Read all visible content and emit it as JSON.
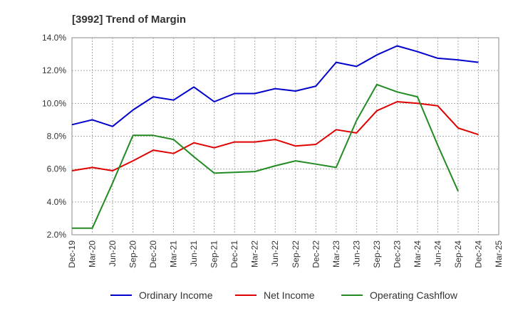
{
  "chart_data": {
    "type": "line",
    "title": "[3992]  Trend of Margin",
    "categories": [
      "Dec-19",
      "Mar-20",
      "Jun-20",
      "Sep-20",
      "Dec-20",
      "Mar-21",
      "Jun-21",
      "Sep-21",
      "Dec-21",
      "Mar-22",
      "Jun-22",
      "Sep-22",
      "Dec-22",
      "Mar-23",
      "Jun-23",
      "Sep-23",
      "Dec-23",
      "Mar-24",
      "Jun-24",
      "Sep-24",
      "Dec-24",
      "Mar-25"
    ],
    "y_ticks": [
      "14.0%",
      "12.0%",
      "10.0%",
      "8.0%",
      "6.0%",
      "4.0%",
      "2.0%"
    ],
    "ylim": [
      2.0,
      14.0
    ],
    "grid": true,
    "legend_position": "bottom",
    "series": [
      {
        "name": "Ordinary Income",
        "color": "#0000cc",
        "values": [
          8.7,
          9.0,
          8.6,
          9.6,
          10.4,
          10.2,
          11.0,
          10.1,
          10.6,
          10.6,
          10.9,
          10.75,
          11.05,
          12.5,
          12.25,
          12.95,
          13.5,
          13.15,
          12.75,
          12.65,
          12.5,
          null
        ]
      },
      {
        "name": "Net Income",
        "color": "#e00000",
        "values": [
          5.9,
          6.1,
          5.9,
          6.5,
          7.15,
          6.95,
          7.6,
          7.3,
          7.65,
          7.65,
          7.8,
          7.4,
          7.5,
          8.4,
          8.2,
          9.55,
          10.1,
          10.0,
          9.85,
          8.5,
          8.1,
          null
        ]
      },
      {
        "name": "Operating Cashflow",
        "color": "#228b22",
        "values": [
          2.4,
          2.4,
          5.15,
          8.05,
          8.05,
          7.8,
          6.75,
          5.75,
          5.8,
          5.85,
          6.2,
          6.5,
          6.3,
          6.1,
          8.95,
          11.15,
          10.7,
          10.4,
          7.45,
          4.65,
          null,
          null
        ]
      }
    ]
  }
}
